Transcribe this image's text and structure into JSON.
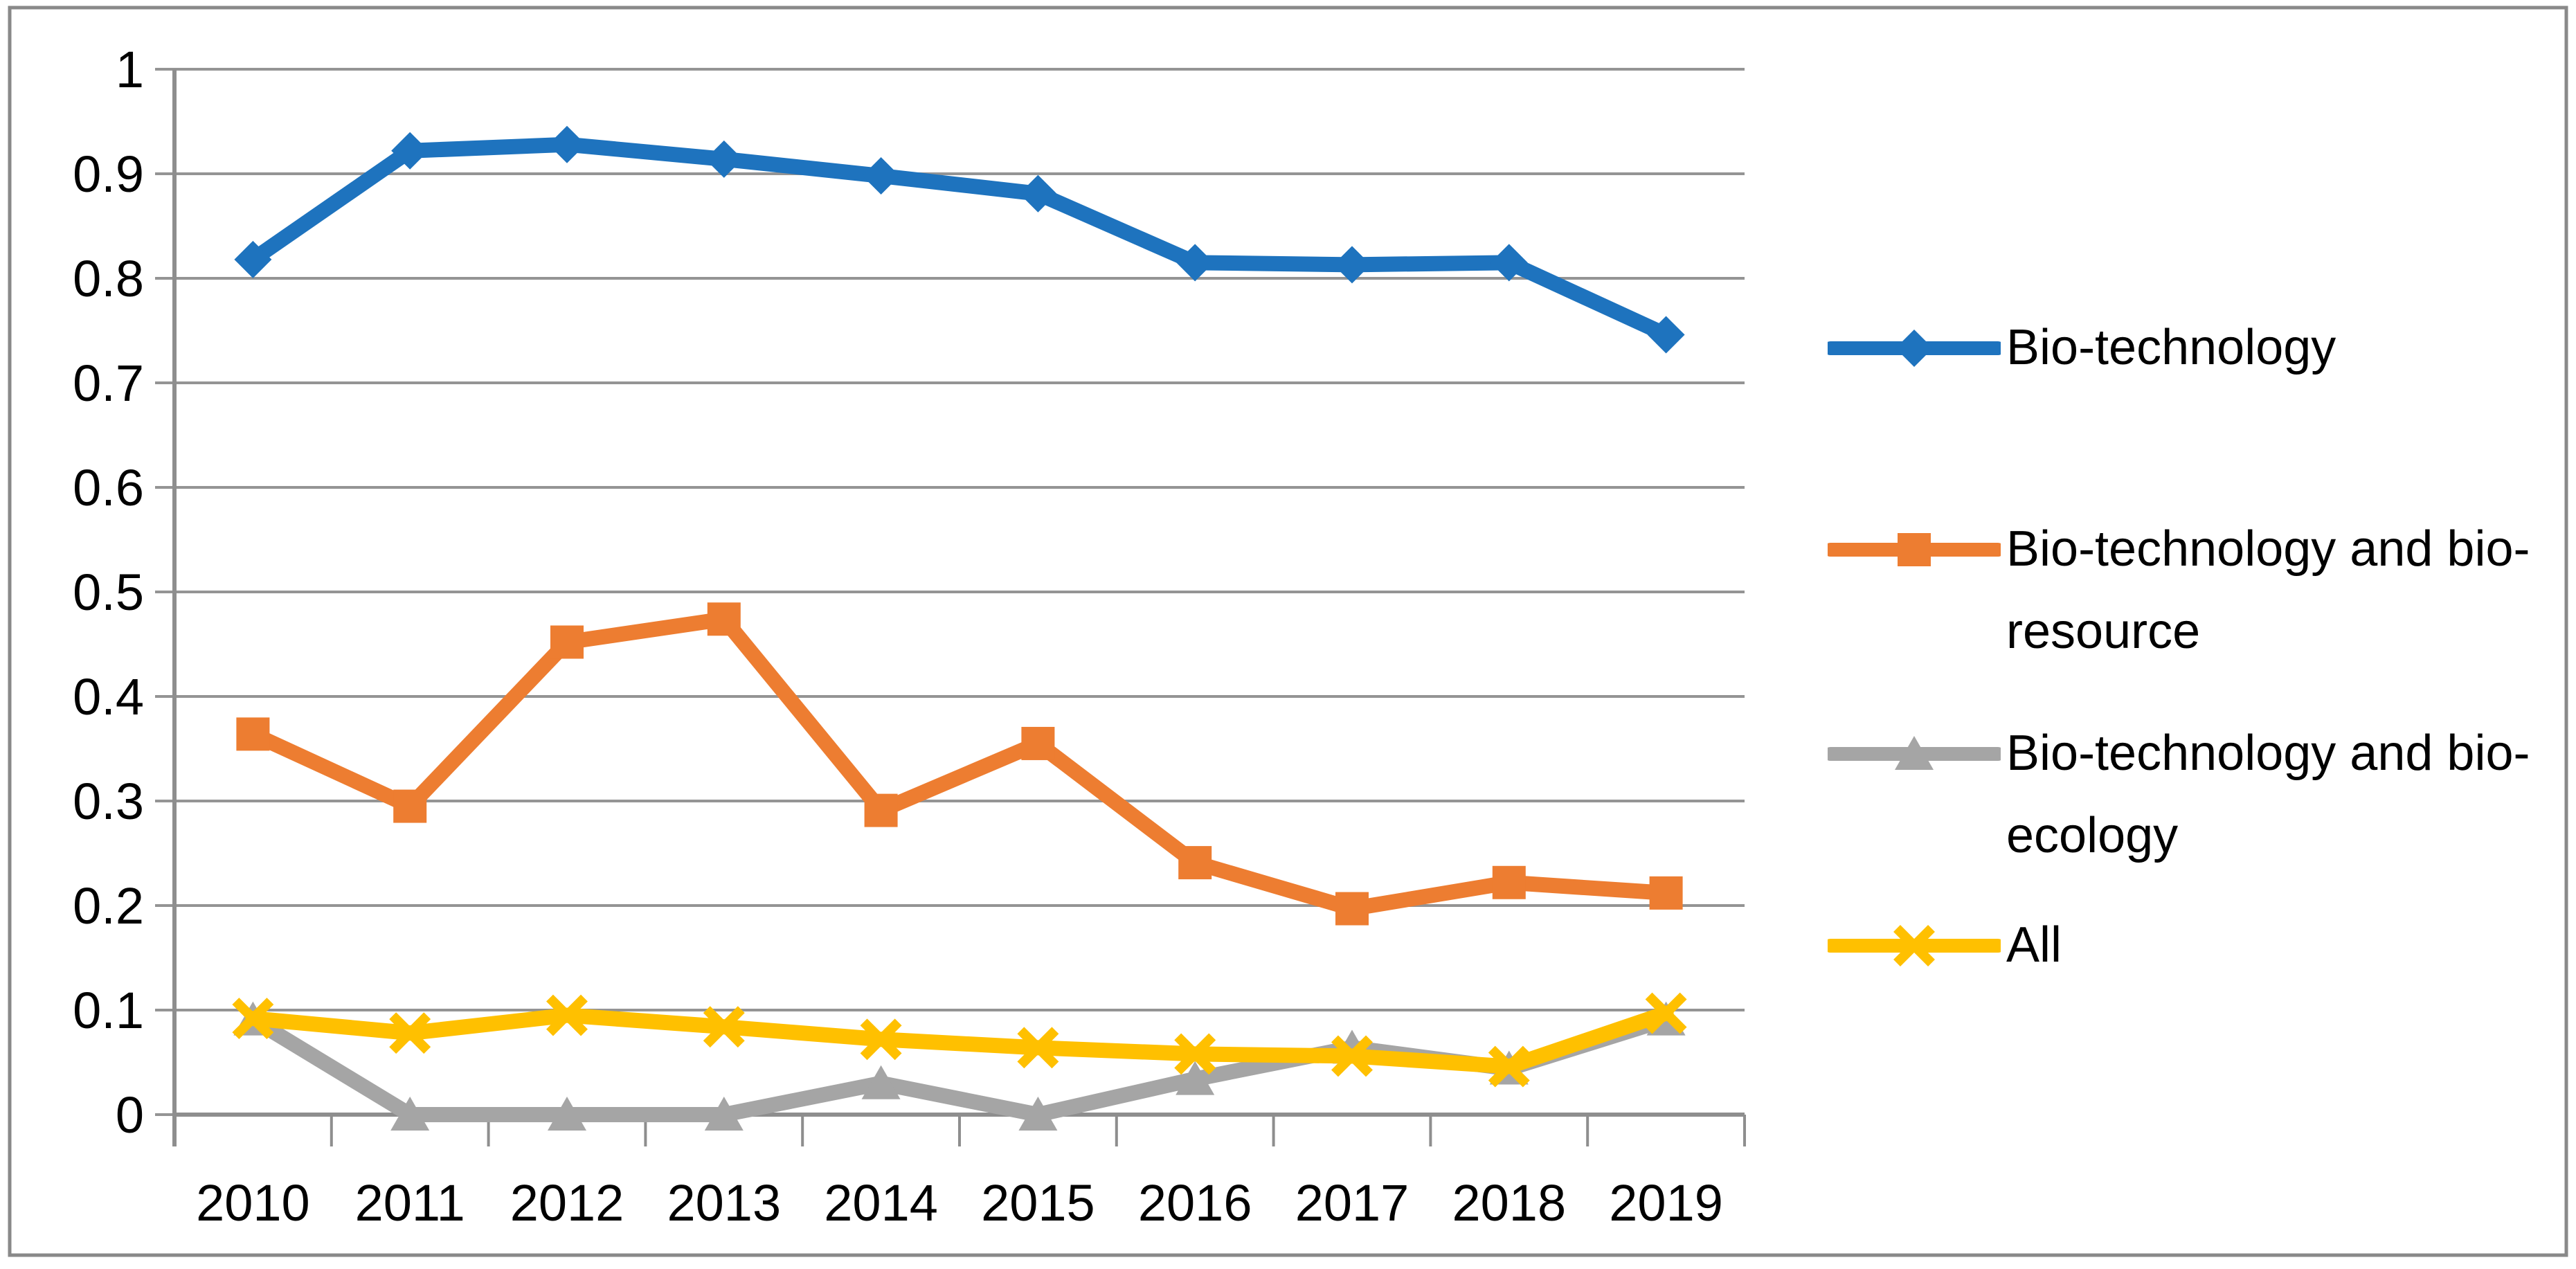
{
  "chart_data": {
    "type": "line",
    "title": "",
    "xlabel": "",
    "ylabel": "",
    "x_labels": [
      "2010",
      "2011",
      "2012",
      "2013",
      "2014",
      "2015",
      "2016",
      "2017",
      "2018",
      "2019"
    ],
    "y_tick_labels": [
      "0",
      "0.1",
      "0.2",
      "0.3",
      "0.4",
      "0.5",
      "0.6",
      "0.7",
      "0.8",
      "0.9",
      "1"
    ],
    "ylim": [
      0,
      1
    ],
    "ytick_step": 0.1,
    "grid": true,
    "legend_position": "right",
    "series": [
      {
        "name": "Bio-technology",
        "marker": "diamond",
        "color": "#1E73BE",
        "values": [
          0.818,
          0.922,
          0.928,
          0.914,
          0.898,
          0.881,
          0.815,
          0.813,
          0.815,
          0.746
        ]
      },
      {
        "name": "Bio-technology and bio-resource",
        "marker": "square",
        "color": "#ED7D31",
        "values": [
          0.364,
          0.295,
          0.452,
          0.474,
          0.291,
          0.355,
          0.241,
          0.197,
          0.222,
          0.212
        ]
      },
      {
        "name": "Bio-technology and bio-ecology",
        "marker": "triangle",
        "color": "#A5A5A5",
        "values": [
          0.091,
          0,
          0,
          0,
          0.03,
          0,
          0.034,
          0.064,
          0.044,
          0.091
        ]
      },
      {
        "name": "All",
        "marker": "x",
        "color": "#FFC000",
        "values": [
          0.092,
          0.078,
          0.095,
          0.084,
          0.072,
          0.064,
          0.058,
          0.056,
          0.046,
          0.097
        ]
      }
    ],
    "colors": {
      "gridline": "#949494",
      "axis": "#8E8E8E",
      "border": "#898989",
      "background": "#FFFFFF",
      "text": "#000000"
    }
  }
}
